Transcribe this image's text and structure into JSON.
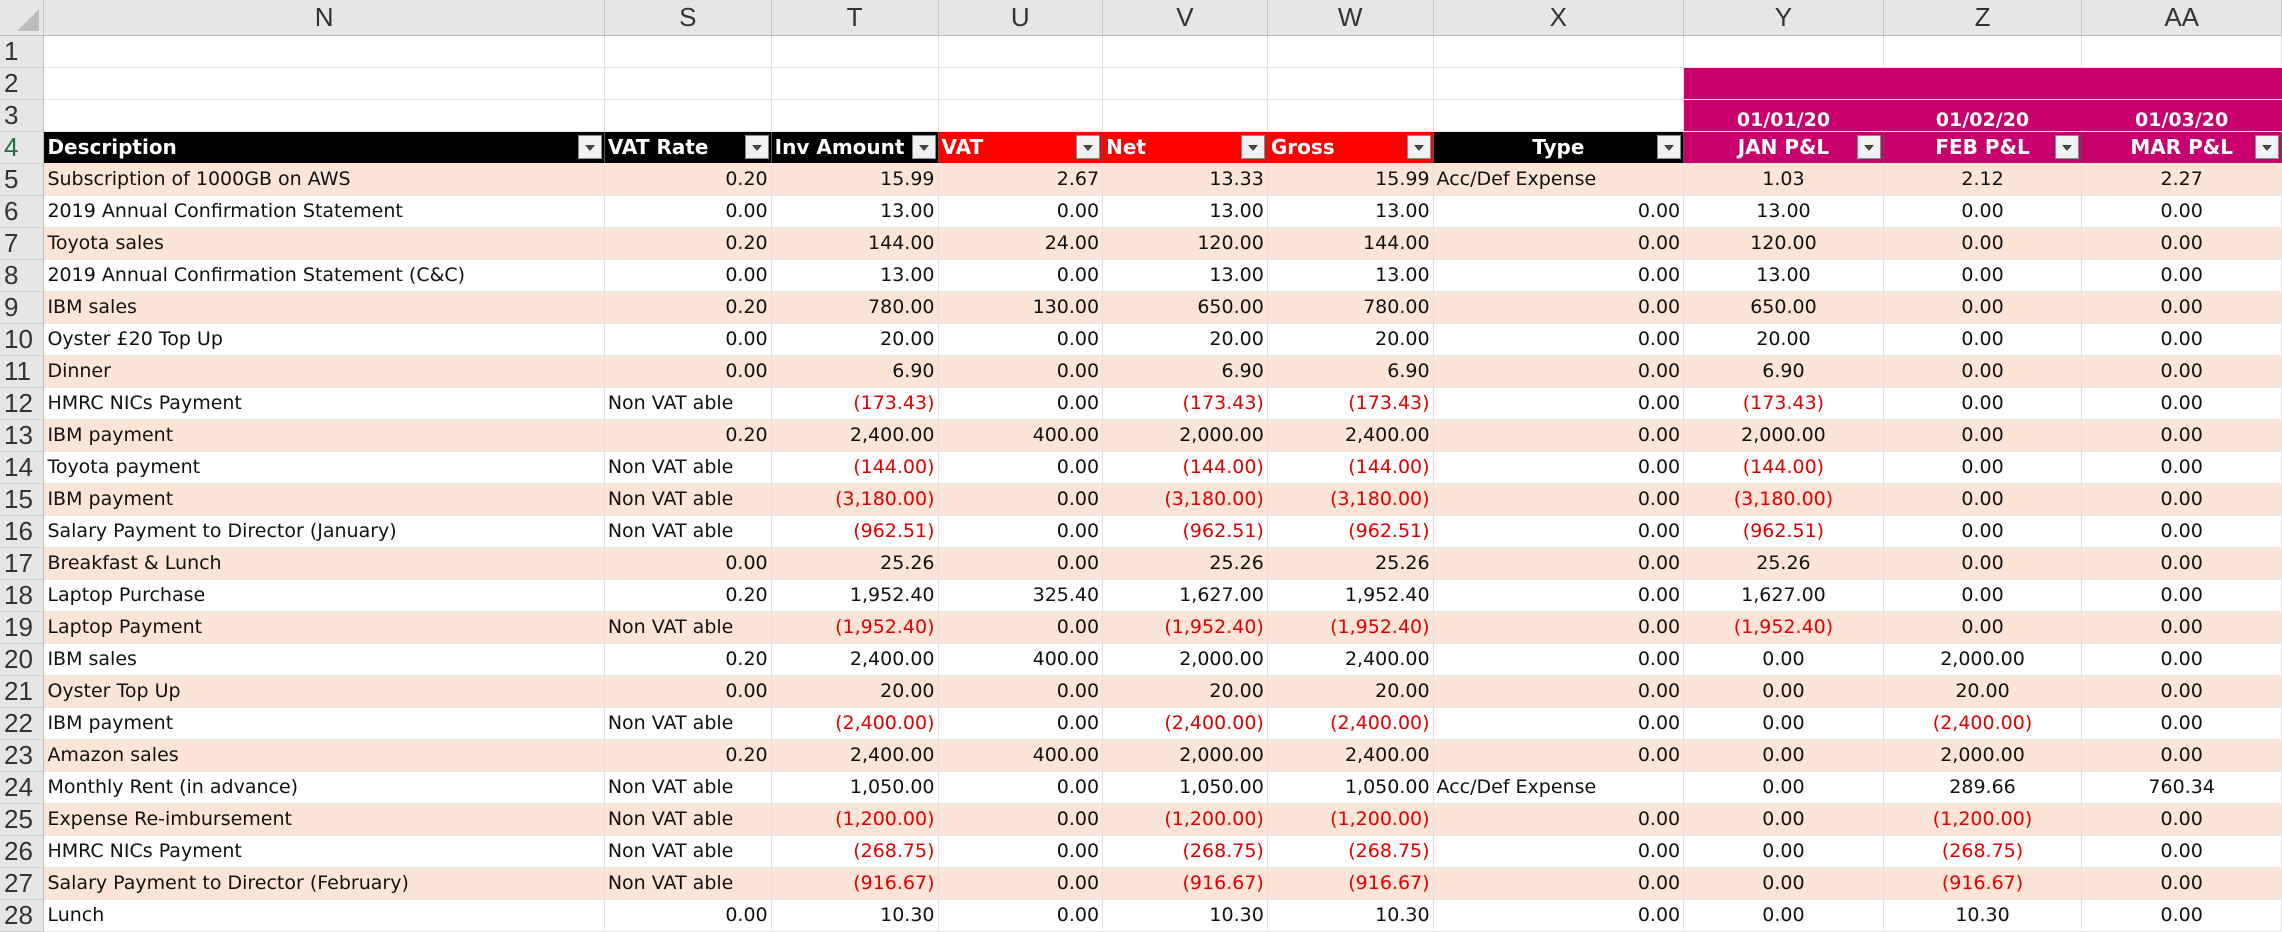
{
  "columns": [
    "N",
    "S",
    "T",
    "U",
    "V",
    "W",
    "X",
    "Y",
    "Z",
    "AA"
  ],
  "dates": [
    "01/01/20",
    "01/02/20",
    "01/03/20"
  ],
  "headers": {
    "description": "Description",
    "vat_rate": "VAT Rate",
    "inv_amount": "Inv Amount",
    "vat": "VAT",
    "net": "Net",
    "gross": "Gross",
    "type": "Type",
    "jan": "JAN P&L",
    "feb": "FEB P&L",
    "mar": "MAR P&L"
  },
  "colors": {
    "header_black": "#000000",
    "header_red": "#ff0000",
    "header_magenta": "#c8006e",
    "band": "#fce4d6",
    "negative": "#e00000"
  },
  "rows": [
    {
      "n": "5",
      "desc": "Subscription of 1000GB on AWS",
      "vat_rate": "0.20",
      "inv": "15.99",
      "vat": "2.67",
      "net": "13.33",
      "gross": "15.99",
      "type": "Acc/Def Expense",
      "jan": "1.03",
      "feb": "2.12",
      "mar": "2.27"
    },
    {
      "n": "6",
      "desc": "2019 Annual Confirmation Statement",
      "vat_rate": "0.00",
      "inv": "13.00",
      "vat": "0.00",
      "net": "13.00",
      "gross": "13.00",
      "type": "0.00",
      "jan": "13.00",
      "feb": "0.00",
      "mar": "0.00"
    },
    {
      "n": "7",
      "desc": "Toyota sales",
      "vat_rate": "0.20",
      "inv": "144.00",
      "vat": "24.00",
      "net": "120.00",
      "gross": "144.00",
      "type": "0.00",
      "jan": "120.00",
      "feb": "0.00",
      "mar": "0.00"
    },
    {
      "n": "8",
      "desc": "2019 Annual Confirmation Statement (C&C)",
      "vat_rate": "0.00",
      "inv": "13.00",
      "vat": "0.00",
      "net": "13.00",
      "gross": "13.00",
      "type": "0.00",
      "jan": "13.00",
      "feb": "0.00",
      "mar": "0.00"
    },
    {
      "n": "9",
      "desc": "IBM sales",
      "vat_rate": "0.20",
      "inv": "780.00",
      "vat": "130.00",
      "net": "650.00",
      "gross": "780.00",
      "type": "0.00",
      "jan": "650.00",
      "feb": "0.00",
      "mar": "0.00"
    },
    {
      "n": "10",
      "desc": "Oyster £20 Top Up",
      "vat_rate": "0.00",
      "inv": "20.00",
      "vat": "0.00",
      "net": "20.00",
      "gross": "20.00",
      "type": "0.00",
      "jan": "20.00",
      "feb": "0.00",
      "mar": "0.00"
    },
    {
      "n": "11",
      "desc": "Dinner",
      "vat_rate": "0.00",
      "inv": "6.90",
      "vat": "0.00",
      "net": "6.90",
      "gross": "6.90",
      "type": "0.00",
      "jan": "6.90",
      "feb": "0.00",
      "mar": "0.00"
    },
    {
      "n": "12",
      "desc": "HMRC NICs Payment",
      "vat_rate": "Non VAT able",
      "inv": "(173.43)",
      "vat": "0.00",
      "net": "(173.43)",
      "gross": "(173.43)",
      "type": "0.00",
      "jan": "(173.43)",
      "feb": "0.00",
      "mar": "0.00"
    },
    {
      "n": "13",
      "desc": "IBM payment",
      "vat_rate": "0.20",
      "inv": "2,400.00",
      "vat": "400.00",
      "net": "2,000.00",
      "gross": "2,400.00",
      "type": "0.00",
      "jan": "2,000.00",
      "feb": "0.00",
      "mar": "0.00"
    },
    {
      "n": "14",
      "desc": "Toyota payment",
      "vat_rate": "Non VAT able",
      "inv": "(144.00)",
      "vat": "0.00",
      "net": "(144.00)",
      "gross": "(144.00)",
      "type": "0.00",
      "jan": "(144.00)",
      "feb": "0.00",
      "mar": "0.00"
    },
    {
      "n": "15",
      "desc": "IBM payment",
      "vat_rate": "Non VAT able",
      "inv": "(3,180.00)",
      "vat": "0.00",
      "net": "(3,180.00)",
      "gross": "(3,180.00)",
      "type": "0.00",
      "jan": "(3,180.00)",
      "feb": "0.00",
      "mar": "0.00"
    },
    {
      "n": "16",
      "desc": "Salary Payment to Director (January)",
      "vat_rate": "Non VAT able",
      "inv": "(962.51)",
      "vat": "0.00",
      "net": "(962.51)",
      "gross": "(962.51)",
      "type": "0.00",
      "jan": "(962.51)",
      "feb": "0.00",
      "mar": "0.00"
    },
    {
      "n": "17",
      "desc": "Breakfast & Lunch",
      "vat_rate": "0.00",
      "inv": "25.26",
      "vat": "0.00",
      "net": "25.26",
      "gross": "25.26",
      "type": "0.00",
      "jan": "25.26",
      "feb": "0.00",
      "mar": "0.00"
    },
    {
      "n": "18",
      "desc": "Laptop Purchase",
      "vat_rate": "0.20",
      "inv": "1,952.40",
      "vat": "325.40",
      "net": "1,627.00",
      "gross": "1,952.40",
      "type": "0.00",
      "jan": "1,627.00",
      "feb": "0.00",
      "mar": "0.00"
    },
    {
      "n": "19",
      "desc": "Laptop Payment",
      "vat_rate": "Non VAT able",
      "inv": "(1,952.40)",
      "vat": "0.00",
      "net": "(1,952.40)",
      "gross": "(1,952.40)",
      "type": "0.00",
      "jan": "(1,952.40)",
      "feb": "0.00",
      "mar": "0.00"
    },
    {
      "n": "20",
      "desc": "IBM sales",
      "vat_rate": "0.20",
      "inv": "2,400.00",
      "vat": "400.00",
      "net": "2,000.00",
      "gross": "2,400.00",
      "type": "0.00",
      "jan": "0.00",
      "feb": "2,000.00",
      "mar": "0.00"
    },
    {
      "n": "21",
      "desc": "Oyster Top Up",
      "vat_rate": "0.00",
      "inv": "20.00",
      "vat": "0.00",
      "net": "20.00",
      "gross": "20.00",
      "type": "0.00",
      "jan": "0.00",
      "feb": "20.00",
      "mar": "0.00"
    },
    {
      "n": "22",
      "desc": "IBM payment",
      "vat_rate": "Non VAT able",
      "inv": "(2,400.00)",
      "vat": "0.00",
      "net": "(2,400.00)",
      "gross": "(2,400.00)",
      "type": "0.00",
      "jan": "0.00",
      "feb": "(2,400.00)",
      "mar": "0.00"
    },
    {
      "n": "23",
      "desc": "Amazon sales",
      "vat_rate": "0.20",
      "inv": "2,400.00",
      "vat": "400.00",
      "net": "2,000.00",
      "gross": "2,400.00",
      "type": "0.00",
      "jan": "0.00",
      "feb": "2,000.00",
      "mar": "0.00"
    },
    {
      "n": "24",
      "desc": "Monthly Rent (in advance)",
      "vat_rate": "Non VAT able",
      "inv": "1,050.00",
      "vat": "0.00",
      "net": "1,050.00",
      "gross": "1,050.00",
      "type": "Acc/Def Expense",
      "jan": "0.00",
      "feb": "289.66",
      "mar": "760.34"
    },
    {
      "n": "25",
      "desc": "Expense Re-imbursement",
      "vat_rate": "Non VAT able",
      "inv": "(1,200.00)",
      "vat": "0.00",
      "net": "(1,200.00)",
      "gross": "(1,200.00)",
      "type": "0.00",
      "jan": "0.00",
      "feb": "(1,200.00)",
      "mar": "0.00"
    },
    {
      "n": "26",
      "desc": "HMRC NICs Payment",
      "vat_rate": "Non VAT able",
      "inv": "(268.75)",
      "vat": "0.00",
      "net": "(268.75)",
      "gross": "(268.75)",
      "type": "0.00",
      "jan": "0.00",
      "feb": "(268.75)",
      "mar": "0.00"
    },
    {
      "n": "27",
      "desc": "Salary Payment to Director (February)",
      "vat_rate": "Non VAT able",
      "inv": "(916.67)",
      "vat": "0.00",
      "net": "(916.67)",
      "gross": "(916.67)",
      "type": "0.00",
      "jan": "0.00",
      "feb": "(916.67)",
      "mar": "0.00"
    },
    {
      "n": "28",
      "desc": "Lunch",
      "vat_rate": "0.00",
      "inv": "10.30",
      "vat": "0.00",
      "net": "10.30",
      "gross": "10.30",
      "type": "0.00",
      "jan": "0.00",
      "feb": "10.30",
      "mar": "0.00"
    }
  ],
  "tail_row": "28"
}
